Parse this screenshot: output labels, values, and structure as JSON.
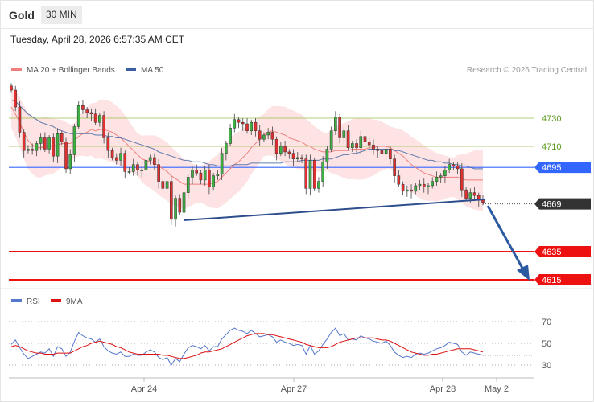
{
  "header": {
    "instrument": "Gold",
    "timeframe": "30 MIN",
    "datetime": "Tuesday, April 28, 2026 6:57:35 AM CET"
  },
  "legend": {
    "ma20_bb": "MA 20 + Bollinger Bands",
    "ma50": "MA 50",
    "credit": "Research © 2026 Trading Central"
  },
  "rsi_legend": {
    "rsi": "RSI",
    "ma9": "9MA"
  },
  "colors": {
    "bullish": "#3cb043",
    "bearish": "#e23030",
    "ma20": "#f08080",
    "ma50": "#3a5fa0",
    "band_fill": "#fde0e0",
    "pivot": "#3366ff",
    "support": "#ee1111",
    "resistance": "#8fbf3f",
    "current": "#333333",
    "trendline": "#2d4d8c",
    "arrow": "#2c5aa0",
    "rsi": "#5577cc",
    "rsi_ma": "#dd1111"
  },
  "chart_data": {
    "type": "candlestick",
    "ylim": [
      4600,
      4760
    ],
    "x_labels": [
      "Apr 24",
      "Apr 27",
      "Apr 28",
      "May 2"
    ],
    "levels": [
      {
        "value": 4730,
        "label": "4730",
        "kind": "resistance"
      },
      {
        "value": 4710,
        "label": "4710",
        "kind": "resistance"
      },
      {
        "value": 4695,
        "label": "4695",
        "kind": "pivot"
      },
      {
        "value": 4669,
        "label": "4669",
        "kind": "current"
      },
      {
        "value": 4635,
        "label": "4635",
        "kind": "support"
      },
      {
        "value": 4615,
        "label": "4615",
        "kind": "support"
      }
    ],
    "closes": [
      4750,
      4738,
      4720,
      4707,
      4708,
      4707,
      4712,
      4716,
      4708,
      4716,
      4703,
      4719,
      4713,
      4694,
      4704,
      4724,
      4739,
      4736,
      4734,
      4733,
      4727,
      4732,
      4716,
      4707,
      4702,
      4700,
      4705,
      4692,
      4692,
      4697,
      4693,
      4693,
      4700,
      4702,
      4697,
      4685,
      4680,
      4685,
      4658,
      4673,
      4663,
      4677,
      4688,
      4693,
      4691,
      4686,
      4693,
      4681,
      4689,
      4690,
      4705,
      4712,
      4723,
      4729,
      4727,
      4726,
      4721,
      4727,
      4721,
      4715,
      4718,
      4720,
      4715,
      4705,
      4710,
      4706,
      4705,
      4701,
      4702,
      4701,
      4680,
      4700,
      4680,
      4685,
      4699,
      4708,
      4721,
      4731,
      4716,
      4721,
      4709,
      4712,
      4709,
      4717,
      4713,
      4711,
      4708,
      4707,
      4705,
      4708,
      4701,
      4689,
      4683,
      4678,
      4679,
      4678,
      4682,
      4683,
      4681,
      4682,
      4685,
      4688,
      4689,
      4693,
      4697,
      4696,
      4694,
      4679,
      4673,
      4677,
      4675,
      4672,
      4670
    ],
    "ma20": [
      4738,
      4733,
      4727,
      4720,
      4714,
      4711,
      4709,
      4709,
      4710,
      4710,
      4710,
      4711,
      4712,
      4712,
      4712,
      4714,
      4717,
      4719,
      4720,
      4722,
      4721,
      4722,
      4722,
      4721,
      4720,
      4718,
      4716,
      4713,
      4710,
      4707,
      4704,
      4701,
      4700,
      4699,
      4698,
      4696,
      4694,
      4692,
      4689,
      4687,
      4685,
      4683,
      4683,
      4683,
      4683,
      4683,
      4683,
      4683,
      4684,
      4685,
      4688,
      4691,
      4694,
      4697,
      4699,
      4702,
      4705,
      4709,
      4712,
      4715,
      4718,
      4720,
      4721,
      4720,
      4719,
      4718,
      4716,
      4715,
      4714,
      4713,
      4711,
      4710,
      4708,
      4707,
      4706,
      4706,
      4706,
      4707,
      4707,
      4707,
      4707,
      4708,
      4708,
      4708,
      4708,
      4709,
      4709,
      4710,
      4710,
      4710,
      4709,
      4707,
      4705,
      4703,
      4700,
      4697,
      4695,
      4693,
      4691,
      4690,
      4689,
      4688,
      4688,
      4688,
      4688,
      4688,
      4688,
      4687,
      4686,
      4686,
      4686,
      4686,
      4686
    ],
    "ma50": [
      4743,
      4742,
      4739,
      4736,
      4733,
      4731,
      4729,
      4727,
      4726,
      4725,
      4724,
      4722,
      4721,
      4720,
      4719,
      4719,
      4719,
      4719,
      4719,
      4719,
      4718,
      4718,
      4718,
      4717,
      4717,
      4716,
      4716,
      4715,
      4714,
      4713,
      4712,
      4711,
      4710,
      4709,
      4708,
      4706,
      4705,
      4704,
      4703,
      4702,
      4701,
      4700,
      4700,
      4699,
      4699,
      4699,
      4698,
      4697,
      4697,
      4696,
      4696,
      4696,
      4696,
      4697,
      4697,
      4697,
      4697,
      4698,
      4698,
      4698,
      4698,
      4698,
      4698,
      4698,
      4698,
      4699,
      4699,
      4699,
      4699,
      4700,
      4700,
      4700,
      4700,
      4700,
      4701,
      4701,
      4701,
      4702,
      4703,
      4704,
      4704,
      4705,
      4705,
      4706,
      4707,
      4708,
      4708,
      4708,
      4708,
      4708,
      4708,
      4707,
      4707,
      4706,
      4705,
      4704,
      4703,
      4702,
      4701,
      4700,
      4700,
      4699,
      4699,
      4698,
      4698,
      4697,
      4697,
      4696,
      4696,
      4695,
      4694,
      4694,
      4694
    ],
    "rsi": [
      49,
      53,
      46,
      40,
      36,
      38,
      40,
      42,
      41,
      45,
      38,
      47,
      45,
      38,
      42,
      52,
      60,
      57,
      55,
      54,
      51,
      54,
      47,
      43,
      41,
      40,
      42,
      38,
      38,
      40,
      39,
      39,
      42,
      44,
      42,
      37,
      35,
      37,
      30,
      36,
      33,
      40,
      46,
      48,
      47,
      45,
      48,
      43,
      47,
      47,
      54,
      58,
      62,
      64,
      62,
      61,
      59,
      62,
      59,
      56,
      57,
      58,
      56,
      51,
      53,
      51,
      50,
      48,
      49,
      48,
      40,
      48,
      40,
      43,
      49,
      54,
      60,
      64,
      57,
      59,
      53,
      54,
      53,
      57,
      55,
      54,
      52,
      51,
      50,
      52,
      48,
      42,
      39,
      37,
      38,
      37,
      40,
      41,
      40,
      41,
      43,
      45,
      46,
      48,
      51,
      50,
      49,
      42,
      39,
      42,
      41,
      40,
      39
    ],
    "rsi_ma": [
      47,
      48,
      47,
      45,
      43,
      42,
      41,
      41,
      40,
      40,
      40,
      41,
      41,
      41,
      41,
      43,
      45,
      47,
      48,
      50,
      51,
      52,
      51,
      50,
      49,
      47,
      46,
      44,
      42,
      41,
      40,
      40,
      40,
      40,
      40,
      40,
      39,
      39,
      38,
      37,
      36,
      36,
      37,
      38,
      39,
      41,
      42,
      42,
      43,
      44,
      45,
      47,
      49,
      51,
      53,
      55,
      57,
      58,
      59,
      59,
      59,
      58,
      58,
      57,
      56,
      55,
      54,
      53,
      52,
      51,
      49,
      48,
      47,
      46,
      46,
      46,
      47,
      49,
      51,
      52,
      53,
      54,
      55,
      55,
      55,
      55,
      55,
      54,
      53,
      53,
      52,
      50,
      48,
      46,
      44,
      42,
      41,
      40,
      39,
      39,
      40,
      40,
      41,
      42,
      43,
      44,
      45,
      45,
      45,
      45,
      44,
      43,
      42
    ]
  }
}
